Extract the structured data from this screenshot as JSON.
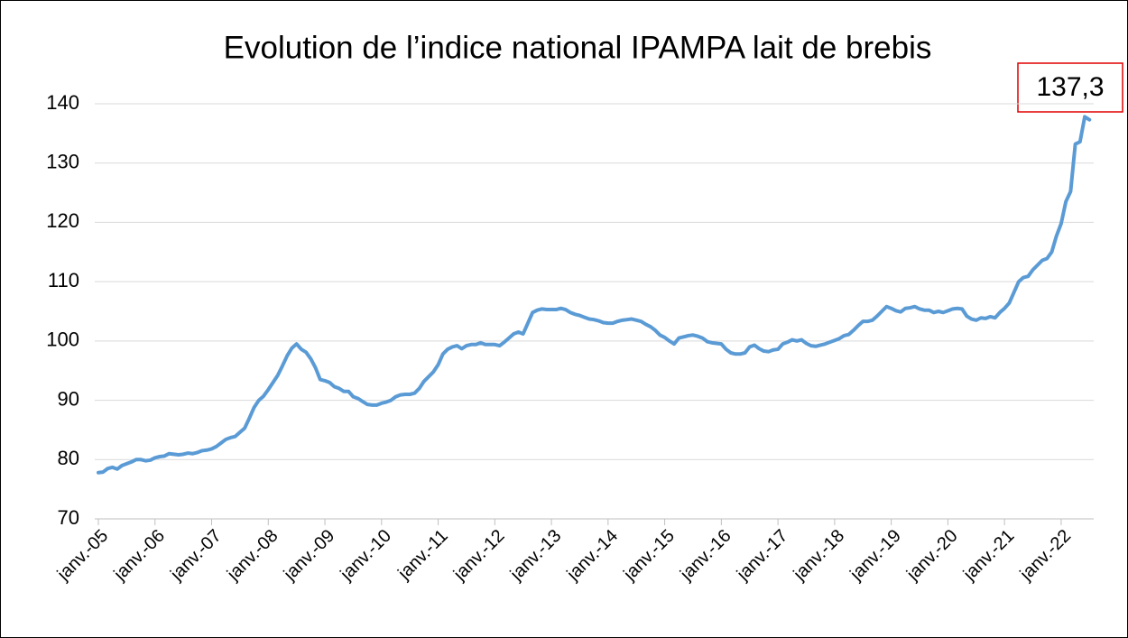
{
  "chart_data": {
    "type": "line",
    "title": "Evolution de l’indice national IPAMPA lait de brebis",
    "annotation": "137,3",
    "categories": [
      "janv.-05",
      null,
      null,
      null,
      null,
      null,
      null,
      null,
      null,
      null,
      null,
      null,
      "janv.-06",
      null,
      null,
      null,
      null,
      null,
      null,
      null,
      null,
      null,
      null,
      null,
      "janv.-07",
      null,
      null,
      null,
      null,
      null,
      null,
      null,
      null,
      null,
      null,
      null,
      "janv.-08",
      null,
      null,
      null,
      null,
      null,
      null,
      null,
      null,
      null,
      null,
      null,
      "janv.-09",
      null,
      null,
      null,
      null,
      null,
      null,
      null,
      null,
      null,
      null,
      null,
      "janv.-10",
      null,
      null,
      null,
      null,
      null,
      null,
      null,
      null,
      null,
      null,
      null,
      "janv.-11",
      null,
      null,
      null,
      null,
      null,
      null,
      null,
      null,
      null,
      null,
      null,
      "janv.-12",
      null,
      null,
      null,
      null,
      null,
      null,
      null,
      null,
      null,
      null,
      null,
      "janv.-13",
      null,
      null,
      null,
      null,
      null,
      null,
      null,
      null,
      null,
      null,
      null,
      "janv.-14",
      null,
      null,
      null,
      null,
      null,
      null,
      null,
      null,
      null,
      null,
      null,
      "janv.-15",
      null,
      null,
      null,
      null,
      null,
      null,
      null,
      null,
      null,
      null,
      null,
      "janv.-16",
      null,
      null,
      null,
      null,
      null,
      null,
      null,
      null,
      null,
      null,
      null,
      "janv.-17",
      null,
      null,
      null,
      null,
      null,
      null,
      null,
      null,
      null,
      null,
      null,
      "janv.-18",
      null,
      null,
      null,
      null,
      null,
      null,
      null,
      null,
      null,
      null,
      null,
      "janv.-19",
      null,
      null,
      null,
      null,
      null,
      null,
      null,
      null,
      null,
      null,
      null,
      "janv.-20",
      null,
      null,
      null,
      null,
      null,
      null,
      null,
      null,
      null,
      null,
      null,
      "janv.-21",
      null,
      null,
      null,
      null,
      null,
      null,
      null,
      null,
      null,
      null,
      null,
      "janv.-22",
      null,
      null,
      null,
      null,
      null,
      null
    ],
    "values": [
      77.8,
      77.9,
      78.5,
      78.7,
      78.4,
      79.0,
      79.3,
      79.6,
      80.0,
      80.0,
      79.8,
      79.9,
      80.3,
      80.5,
      80.6,
      81.0,
      80.9,
      80.8,
      80.9,
      81.1,
      81.0,
      81.2,
      81.5,
      81.6,
      81.8,
      82.2,
      82.8,
      83.4,
      83.7,
      83.9,
      84.6,
      85.3,
      87.0,
      88.8,
      90.0,
      90.7,
      91.8,
      93.0,
      94.2,
      95.8,
      97.5,
      98.8,
      99.5,
      98.6,
      98.1,
      97.0,
      95.5,
      93.5,
      93.3,
      93.0,
      92.3,
      92.0,
      91.5,
      91.5,
      90.6,
      90.3,
      89.8,
      89.3,
      89.2,
      89.2,
      89.5,
      89.7,
      90.0,
      90.6,
      90.9,
      91.0,
      91.0,
      91.2,
      92.0,
      93.2,
      94.0,
      94.8,
      96.0,
      97.8,
      98.6,
      99.0,
      99.2,
      98.7,
      99.2,
      99.4,
      99.4,
      99.7,
      99.4,
      99.4,
      99.4,
      99.2,
      99.8,
      100.5,
      101.2,
      101.5,
      101.2,
      103.0,
      104.8,
      105.2,
      105.4,
      105.3,
      105.3,
      105.3,
      105.5,
      105.3,
      104.8,
      104.5,
      104.3,
      104.0,
      103.7,
      103.6,
      103.4,
      103.1,
      103.0,
      103.0,
      103.3,
      103.5,
      103.6,
      103.7,
      103.5,
      103.3,
      102.8,
      102.4,
      101.8,
      101.0,
      100.6,
      100.0,
      99.5,
      100.5,
      100.7,
      100.9,
      101.0,
      100.8,
      100.5,
      99.9,
      99.7,
      99.6,
      99.5,
      98.6,
      98.0,
      97.8,
      97.8,
      98.0,
      99.0,
      99.3,
      98.7,
      98.3,
      98.2,
      98.5,
      98.6,
      99.5,
      99.8,
      100.2,
      100.0,
      100.2,
      99.6,
      99.2,
      99.1,
      99.3,
      99.5,
      99.8,
      100.1,
      100.4,
      100.9,
      101.1,
      101.8,
      102.6,
      103.3,
      103.3,
      103.5,
      104.2,
      105.0,
      105.8,
      105.5,
      105.1,
      104.9,
      105.5,
      105.6,
      105.8,
      105.4,
      105.2,
      105.2,
      104.8,
      105.0,
      104.8,
      105.1,
      105.4,
      105.5,
      105.4,
      104.2,
      103.7,
      103.5,
      103.9,
      103.8,
      104.1,
      103.9,
      104.8,
      105.5,
      106.4,
      108.2,
      110.0,
      110.7,
      110.9,
      112.0,
      112.8,
      113.6,
      113.9,
      115.0,
      117.7,
      119.8,
      123.5,
      125.2,
      133.2,
      133.6,
      137.8,
      137.3
    ],
    "color": "#5b9bd5",
    "ylim": [
      70,
      140
    ],
    "yticks": [
      70,
      80,
      90,
      100,
      110,
      120,
      130,
      140
    ],
    "grid": true
  }
}
